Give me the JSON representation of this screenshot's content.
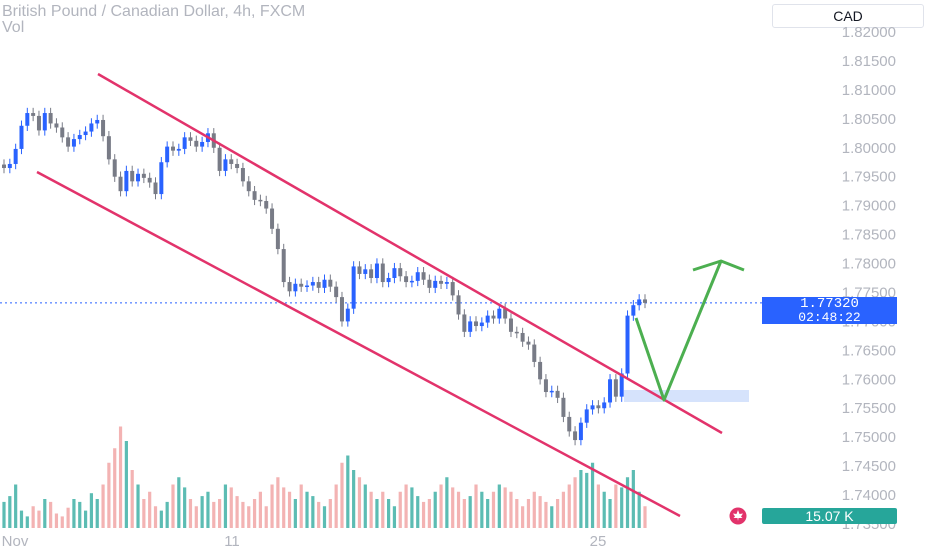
{
  "header": {
    "title": "British Pound / Canadian Dollar, 4h, FXCM",
    "subtitle": "Vol"
  },
  "axis": {
    "currency": "CAD"
  },
  "price_tag": {
    "price": "1.77320",
    "countdown": "02:48:22"
  },
  "volume_tag": {
    "value": "15.07 K"
  },
  "colors": {
    "up": "#2962ff",
    "down": "#787b86",
    "channel": "#e2336b",
    "arrow": "#4caf50",
    "vol_up": "#26a69a",
    "vol_down": "#ef9a9a",
    "zone": "#d6e3fc",
    "last_price": "#2962ff"
  },
  "chart_data": {
    "type": "candlestick",
    "title": "British Pound / Canadian Dollar, 4h, FXCM",
    "y_axis": {
      "ticks": [
        "1.82000",
        "1.81500",
        "1.81000",
        "1.80500",
        "1.80000",
        "1.79500",
        "1.79000",
        "1.78500",
        "1.78000",
        "1.77500",
        "1.77000",
        "1.76500",
        "1.76000",
        "1.75500",
        "1.75000",
        "1.74500",
        "1.74000",
        "1.73500"
      ],
      "ylim": [
        1.7335,
        1.8235
      ]
    },
    "x_axis": {
      "ticks": [
        "Nov",
        "11",
        "25"
      ]
    },
    "last_price": 1.7732,
    "closes": [
      1.7965,
      1.7972,
      1.7998,
      1.8038,
      1.806,
      1.8055,
      1.803,
      1.806,
      1.8042,
      1.8035,
      1.8018,
      1.8002,
      1.8015,
      1.8022,
      1.8028,
      1.8042,
      1.8048,
      1.802,
      1.798,
      1.795,
      1.7925,
      1.796,
      1.7942,
      1.7955,
      1.7948,
      1.794,
      1.792,
      1.7975,
      1.8002,
      1.7995,
      1.7998,
      1.8018,
      1.8012,
      1.8002,
      1.801,
      1.8025,
      1.8,
      1.796,
      1.798,
      1.7972,
      1.7965,
      1.7942,
      1.7925,
      1.791,
      1.7908,
      1.7895,
      1.786,
      1.7825,
      1.7768,
      1.7752,
      1.7765,
      1.776,
      1.7762,
      1.7768,
      1.7758,
      1.7772,
      1.776,
      1.7742,
      1.77,
      1.7722,
      1.7795,
      1.7782,
      1.779,
      1.7775,
      1.78,
      1.7768,
      1.7775,
      1.7792,
      1.7778,
      1.7768,
      1.777,
      1.7785,
      1.7772,
      1.7758,
      1.777,
      1.7765,
      1.7768,
      1.7745,
      1.7712,
      1.7682,
      1.77,
      1.7692,
      1.7698,
      1.771,
      1.7705,
      1.7722,
      1.7705,
      1.7682,
      1.768,
      1.7665,
      1.766,
      1.763,
      1.76,
      1.7578,
      1.758,
      1.7568,
      1.7535,
      1.751,
      1.7495,
      1.7525,
      1.7548,
      1.7555,
      1.755,
      1.756,
      1.76,
      1.757,
      1.761,
      1.771,
      1.7728,
      1.7738,
      1.7732
    ],
    "volume": [
      [
        18,
        22,
        30,
        12,
        8,
        15,
        12,
        20,
        18,
        10,
        8,
        14,
        20,
        18,
        12,
        24,
        20,
        30,
        45,
        55,
        70,
        60,
        40,
        30,
        20,
        25,
        15,
        12,
        18,
        30,
        35,
        28,
        20,
        15,
        22,
        25,
        18,
        20,
        30,
        28,
        22,
        18,
        15,
        20,
        25,
        15,
        30,
        35,
        28,
        25,
        20,
        30,
        25,
        22,
        18,
        15,
        20,
        30,
        45,
        50,
        40,
        35,
        30,
        25,
        20,
        25,
        20,
        15,
        25,
        30,
        28,
        22,
        18,
        20,
        25,
        30,
        35,
        28,
        25,
        20,
        22,
        30,
        25,
        20,
        25,
        30,
        28,
        25,
        20,
        15,
        20,
        25,
        22,
        18,
        15,
        20,
        25,
        30,
        35,
        40,
        38,
        45,
        30,
        25,
        20,
        30,
        28,
        35,
        40,
        25,
        15
      ]
    ]
  }
}
